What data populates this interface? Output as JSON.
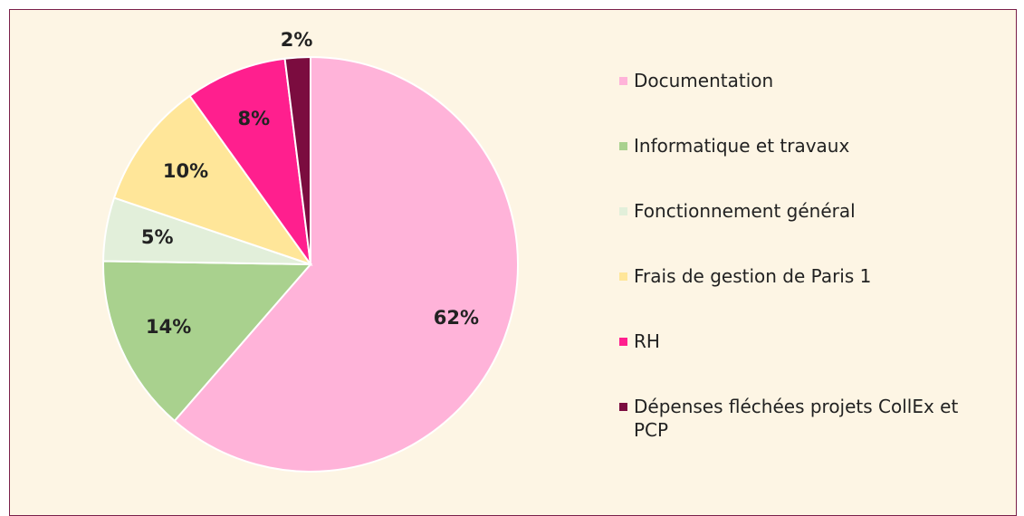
{
  "chart_data": {
    "type": "pie",
    "categories": [
      "Documentation",
      "Informatique et travaux",
      "Fonctionnement général",
      "Frais de gestion de Paris 1",
      "RH",
      "Dépenses fléchées projets CollEx et PCP"
    ],
    "values": [
      62,
      14,
      5,
      10,
      8,
      2
    ],
    "value_labels": [
      "62%",
      "14%",
      "5%",
      "10%",
      "8%",
      "2%"
    ],
    "colors": [
      "#ffb3d9",
      "#a9d18e",
      "#e2efda",
      "#ffe699",
      "#ff1f8e",
      "#7b0c3f"
    ],
    "legend": "right"
  }
}
